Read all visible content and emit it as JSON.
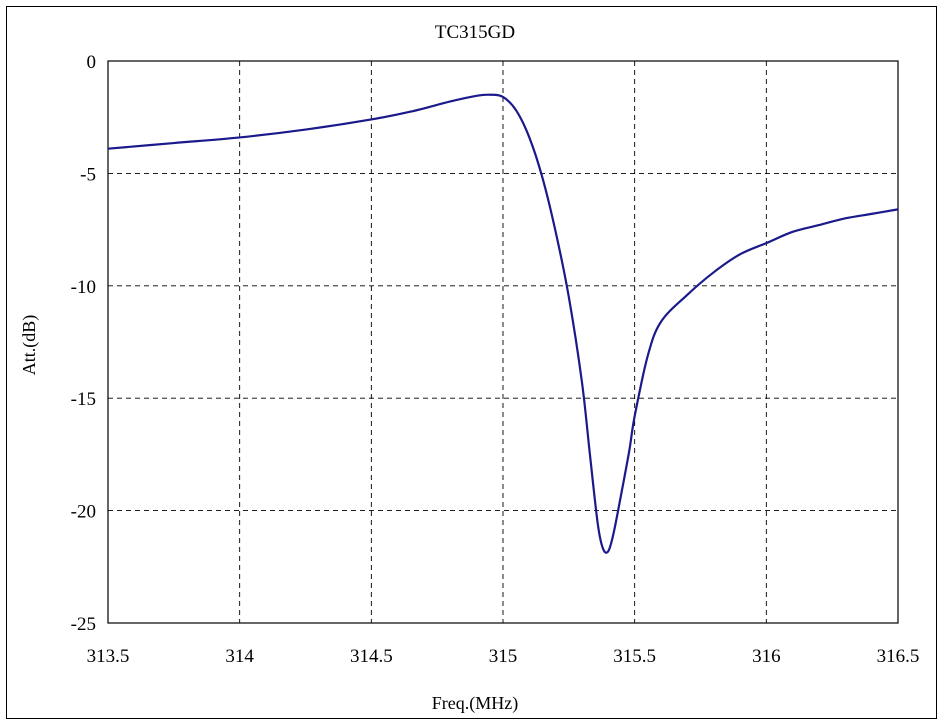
{
  "chart_data": {
    "type": "line",
    "title": "TC315GD",
    "xlabel": "Freq.(MHz)",
    "ylabel": "Att.(dB)",
    "xlim": [
      313.5,
      316.5
    ],
    "ylim": [
      -25,
      0
    ],
    "xticks": [
      313.5,
      314,
      314.5,
      315,
      315.5,
      316,
      316.5
    ],
    "xtick_labels": [
      "313.5",
      "314",
      "314.5",
      "315",
      "315.5",
      "316",
      "316.5"
    ],
    "yticks": [
      0,
      -5,
      -10,
      -15,
      -20,
      -25
    ],
    "ytick_labels": [
      "0",
      "-5",
      "-10",
      "-15",
      "-20",
      "-25"
    ],
    "grid": true,
    "grid_style": "dashed",
    "line_color": "#1a1a8c",
    "series": [
      {
        "x": [
          313.5,
          313.75,
          314.0,
          314.25,
          314.5,
          314.65,
          314.8,
          314.9,
          314.95,
          315.0,
          315.05,
          315.1,
          315.15,
          315.2,
          315.25,
          315.3,
          315.33,
          315.36,
          315.38,
          315.4,
          315.42,
          315.45,
          315.48,
          315.5,
          315.55,
          315.6,
          315.7,
          315.8,
          315.9,
          316.0,
          316.1,
          316.2,
          316.3,
          316.4,
          316.5
        ],
        "y": [
          -3.9,
          -3.65,
          -3.4,
          -3.05,
          -2.6,
          -2.25,
          -1.8,
          -1.55,
          -1.5,
          -1.6,
          -2.2,
          -3.4,
          -5.2,
          -7.6,
          -10.5,
          -14.3,
          -17.5,
          -20.6,
          -21.7,
          -21.8,
          -21.0,
          -19.2,
          -17.3,
          -15.8,
          -13.1,
          -11.6,
          -10.4,
          -9.4,
          -8.6,
          -8.1,
          -7.6,
          -7.3,
          -7.0,
          -6.8,
          -6.6
        ]
      }
    ]
  }
}
